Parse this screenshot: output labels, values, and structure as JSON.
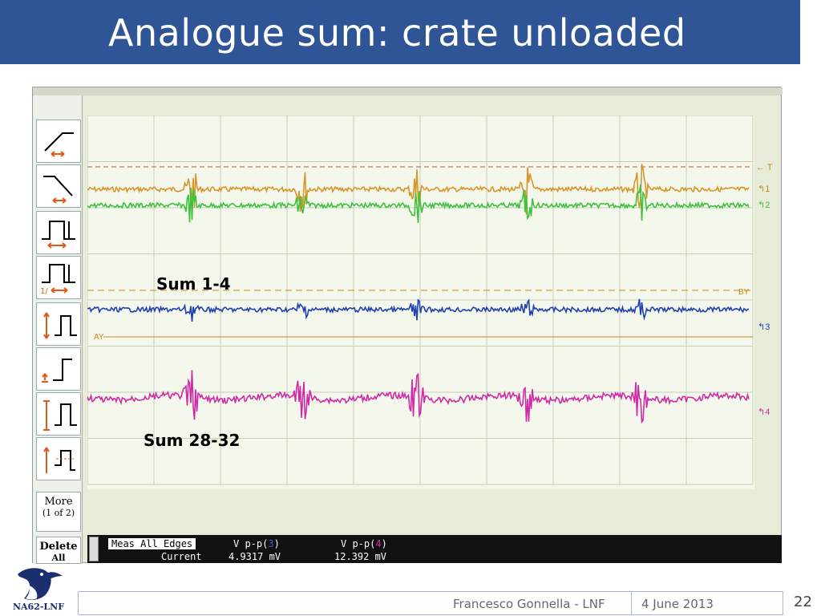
{
  "slide": {
    "title": "Analogue sum: crate unloaded",
    "page_number": "22"
  },
  "footer": {
    "author": "Francesco Gonnella - LNF",
    "date": "4 June 2013"
  },
  "logo": {
    "text": "NA62-LNF"
  },
  "toolbar": {
    "more_label": "More",
    "more_sub": "(1 of 2)",
    "delete_label": "Delete",
    "delete_sub": "All"
  },
  "scope": {
    "labels": {
      "sum_1_4": "Sum 1-4",
      "sum_28_32": "Sum 28-32",
      "marker_T": "T",
      "marker_1": "1",
      "marker_2": "2",
      "marker_3": "3",
      "marker_4": "4",
      "cursor_BY": "BY",
      "cursor_AY": "AY"
    },
    "colors": {
      "ch1": "#d8962a",
      "ch2": "#3ec23e",
      "ch3": "#1e40b0",
      "ch4": "#d02aa8",
      "cursor": "#d8962a",
      "sum1_label": "#1a2fd0",
      "sum28_label": "#7a1a80"
    },
    "measurements": {
      "mode_label": "Meas All Edges",
      "row_label": "Current",
      "m1_name_prefix": "V p-p(",
      "m1_channel": "3",
      "m1_name_suffix": ")",
      "m1_value": "4.9317 mV",
      "m2_name_prefix": "V p-p(",
      "m2_channel": "4",
      "m2_name_suffix": ")",
      "m2_value": "12.392 mV"
    }
  }
}
